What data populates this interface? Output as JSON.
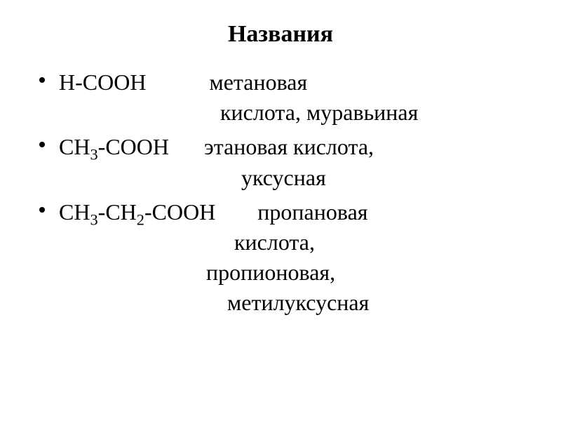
{
  "title": "Названия",
  "items": [
    {
      "formula_parts": [
        "H-COOH"
      ],
      "name_line1": "метановая",
      "name_line2": "кислота, муравьиная"
    },
    {
      "formula_parts": [
        "CH",
        "3",
        "-COOH"
      ],
      "name_line1": "этановая кислота,",
      "name_line2": "уксусная"
    },
    {
      "formula_parts": [
        "CH",
        "3",
        "-CH",
        "2",
        "-COOH"
      ],
      "name_line1": "пропановая",
      "name_line2": "кислота,",
      "name_line3": "пропионовая,",
      "name_line4": "метилуксусная"
    }
  ],
  "styling": {
    "background_color": "#ffffff",
    "text_color": "#000000",
    "title_fontsize": 34,
    "title_fontweight": "bold",
    "body_fontsize": 32,
    "font_family": "Times New Roman",
    "bullet_color": "#000000",
    "bullet_size": 8,
    "line_height": 1.35
  }
}
